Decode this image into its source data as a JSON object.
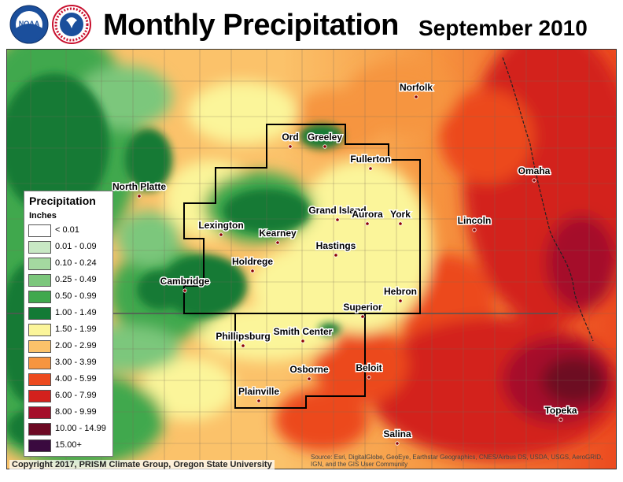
{
  "header": {
    "title": "Monthly Precipitation",
    "period": "September 2010"
  },
  "logos": {
    "noaa_text": "NOAA",
    "nws_text": "NATIONAL WEATHER SERVICE"
  },
  "legend": {
    "title": "Precipitation",
    "units": "Inches",
    "items": [
      {
        "label": "< 0.01",
        "color": "#ffffff"
      },
      {
        "label": "0.01 - 0.09",
        "color": "#c8e8c4"
      },
      {
        "label": "0.10 - 0.24",
        "color": "#a4d9a0"
      },
      {
        "label": "0.25 - 0.49",
        "color": "#7cc77c"
      },
      {
        "label": "0.50 - 0.99",
        "color": "#3fa84d"
      },
      {
        "label": "1.00 - 1.49",
        "color": "#137a35"
      },
      {
        "label": "1.50 - 1.99",
        "color": "#fbf59a"
      },
      {
        "label": "2.00 - 2.99",
        "color": "#fbc26a"
      },
      {
        "label": "3.00 - 3.99",
        "color": "#f69540"
      },
      {
        "label": "4.00 - 5.99",
        "color": "#ec4a1f"
      },
      {
        "label": "6.00 - 7.99",
        "color": "#d3211d"
      },
      {
        "label": "8.00 - 9.99",
        "color": "#a50f2a"
      },
      {
        "label": "10.00 - 14.99",
        "color": "#6d0a24"
      },
      {
        "label": "15.00+",
        "color": "#3a0a3f"
      }
    ]
  },
  "cities": [
    {
      "name": "Norfolk"
    },
    {
      "name": "Ord"
    },
    {
      "name": "Greeley"
    },
    {
      "name": "Fullerton"
    },
    {
      "name": "North Platte"
    },
    {
      "name": "Omaha"
    },
    {
      "name": "Grand Island"
    },
    {
      "name": "Aurora"
    },
    {
      "name": "York"
    },
    {
      "name": "Lincoln"
    },
    {
      "name": "Lexington"
    },
    {
      "name": "Kearney"
    },
    {
      "name": "Hastings"
    },
    {
      "name": "Holdrege"
    },
    {
      "name": "Cambridge"
    },
    {
      "name": "Hebron"
    },
    {
      "name": "Superior"
    },
    {
      "name": "Phillipsburg"
    },
    {
      "name": "Smith Center"
    },
    {
      "name": "Osborne"
    },
    {
      "name": "Beloit"
    },
    {
      "name": "Plainville"
    },
    {
      "name": "Topeka"
    },
    {
      "name": "Salina"
    }
  ],
  "footer": {
    "copyright": "Copyright 2017, PRISM Climate Group, Oregon State University",
    "attribution": "Source: Esri, DigitalGlobe, GeoEye, Earthstar Geographics, CNES/Airbus DS, USDA, USGS, AeroGRID, IGN, and the GIS User Community"
  }
}
